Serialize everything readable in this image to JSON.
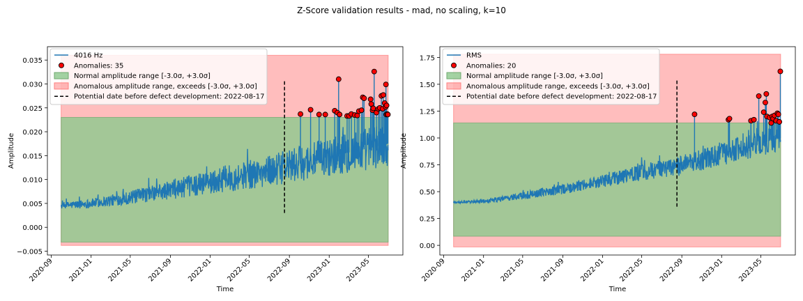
{
  "suptitle": "Z-Score validation results - mad, no scaling, k=10",
  "chart_data": [
    {
      "type": "line",
      "xlabel": "Time",
      "ylabel": "Amplitude",
      "xlim": [
        "2020-08-20",
        "2023-08-15"
      ],
      "ylim": [
        -0.0058,
        0.0378
      ],
      "yticks": [
        -0.005,
        0.0,
        0.005,
        0.01,
        0.015,
        0.02,
        0.025,
        0.03,
        0.035
      ],
      "ytick_labels": [
        "−0.005",
        "0.000",
        "0.005",
        "0.010",
        "0.015",
        "0.020",
        "0.025",
        "0.030",
        "0.035"
      ],
      "xticks": [
        "2020-09-01",
        "2021-01-01",
        "2021-05-01",
        "2021-09-01",
        "2022-01-01",
        "2022-05-01",
        "2022-09-01",
        "2023-01-01",
        "2023-05-01"
      ],
      "xtick_labels": [
        "2020-09",
        "2021-01",
        "2021-05",
        "2021-09",
        "2022-01",
        "2022-05",
        "2022-09",
        "2023-01",
        "2023-05"
      ],
      "bands": {
        "x_start": "2020-10-01",
        "x_end": "2023-07-01",
        "outer": [
          -0.0038,
          0.036
        ],
        "normal": [
          -0.0031,
          0.023
        ]
      },
      "defect_line": {
        "x": "2022-08-17",
        "y": [
          0.003,
          0.031
        ]
      },
      "series": [
        {
          "name": "4016 Hz",
          "color": "#1f77b4",
          "trend": [
            [
              "2020-10-01",
              0.0045
            ],
            [
              "2021-01-01",
              0.005
            ],
            [
              "2021-05-01",
              0.0062
            ],
            [
              "2021-09-01",
              0.0078
            ],
            [
              "2022-01-01",
              0.0095
            ],
            [
              "2022-05-01",
              0.011
            ],
            [
              "2022-08-17",
              0.0125
            ],
            [
              "2023-01-01",
              0.0148
            ],
            [
              "2023-05-01",
              0.0165
            ],
            [
              "2023-07-01",
              0.0175
            ]
          ],
          "noise": [
            [
              "2020-10-01",
              0.0006
            ],
            [
              "2021-05-01",
              0.0012
            ],
            [
              "2022-01-01",
              0.0022
            ],
            [
              "2022-08-17",
              0.003
            ],
            [
              "2023-07-01",
              0.0042
            ]
          ]
        }
      ],
      "anomalies": {
        "name": "Anomalies: 35",
        "points": [
          [
            "2022-10-05",
            0.0237
          ],
          [
            "2022-11-05",
            0.0246
          ],
          [
            "2022-12-01",
            0.0236
          ],
          [
            "2022-12-20",
            0.0236
          ],
          [
            "2023-01-18",
            0.0244
          ],
          [
            "2023-01-26",
            0.024
          ],
          [
            "2023-01-30",
            0.031
          ],
          [
            "2023-02-02",
            0.0236
          ],
          [
            "2023-02-25",
            0.0233
          ],
          [
            "2023-03-03",
            0.0233
          ],
          [
            "2023-03-10",
            0.0237
          ],
          [
            "2023-03-20",
            0.0235
          ],
          [
            "2023-03-28",
            0.0234
          ],
          [
            "2023-04-02",
            0.0243
          ],
          [
            "2023-04-10",
            0.0245
          ],
          [
            "2023-04-14",
            0.0272
          ],
          [
            "2023-04-18",
            0.027
          ],
          [
            "2023-05-08",
            0.0268
          ],
          [
            "2023-05-10",
            0.0258
          ],
          [
            "2023-05-14",
            0.0245
          ],
          [
            "2023-05-16",
            0.0249
          ],
          [
            "2023-05-19",
            0.0326
          ],
          [
            "2023-05-26",
            0.024
          ],
          [
            "2023-06-01",
            0.0248
          ],
          [
            "2023-06-05",
            0.025
          ],
          [
            "2023-06-10",
            0.0275
          ],
          [
            "2023-06-14",
            0.0248
          ],
          [
            "2023-06-16",
            0.0277
          ],
          [
            "2023-06-20",
            0.026
          ],
          [
            "2023-06-23",
            0.0252
          ],
          [
            "2023-06-24",
            0.0299
          ],
          [
            "2023-06-25",
            0.0236
          ],
          [
            "2023-06-26",
            0.0255
          ],
          [
            "2023-06-28",
            0.0237
          ],
          [
            "2023-06-30",
            0.0236
          ]
        ]
      },
      "legend": {
        "placement": "upper left",
        "entries": [
          "4016 Hz",
          "Anomalies: 35",
          "Normal amplitude range [-3.0σ, +3.0σ]",
          "Anomalous amplitude range, exceeds [-3.0σ, +3.0σ]",
          "Potential date before defect development: 2022-08-17"
        ]
      }
    },
    {
      "type": "line",
      "xlabel": "Time",
      "ylabel": "Amplitude",
      "xlim": [
        "2020-08-20",
        "2023-08-15"
      ],
      "ylim": [
        -0.09,
        1.85
      ],
      "yticks": [
        0.0,
        0.25,
        0.5,
        0.75,
        1.0,
        1.25,
        1.5,
        1.75
      ],
      "ytick_labels": [
        "0.00",
        "0.25",
        "0.50",
        "0.75",
        "1.00",
        "1.25",
        "1.50",
        "1.75"
      ],
      "xticks": [
        "2020-09-01",
        "2021-01-01",
        "2021-05-01",
        "2021-09-01",
        "2022-01-01",
        "2022-05-01",
        "2022-09-01",
        "2023-01-01",
        "2023-05-01"
      ],
      "xtick_labels": [
        "2020-09",
        "2021-01",
        "2021-05",
        "2021-09",
        "2022-01",
        "2022-05",
        "2022-09",
        "2023-01",
        "2023-05"
      ],
      "bands": {
        "x_start": "2020-10-01",
        "x_end": "2023-07-01",
        "outer": [
          -0.015,
          1.78
        ],
        "normal": [
          0.085,
          1.14
        ]
      },
      "defect_line": {
        "x": "2022-08-17",
        "y": [
          0.36,
          1.54
        ]
      },
      "series": [
        {
          "name": "RMS",
          "color": "#1f77b4",
          "trend": [
            [
              "2020-10-01",
              0.4
            ],
            [
              "2021-01-01",
              0.41
            ],
            [
              "2021-05-01",
              0.46
            ],
            [
              "2021-09-01",
              0.52
            ],
            [
              "2022-01-01",
              0.6
            ],
            [
              "2022-05-01",
              0.68
            ],
            [
              "2022-08-17",
              0.73
            ],
            [
              "2023-01-01",
              0.85
            ],
            [
              "2023-05-01",
              0.95
            ],
            [
              "2023-07-01",
              1.0
            ]
          ],
          "noise": [
            [
              "2020-10-01",
              0.005
            ],
            [
              "2021-01-01",
              0.015
            ],
            [
              "2021-05-01",
              0.03
            ],
            [
              "2022-01-01",
              0.05
            ],
            [
              "2022-08-17",
              0.08
            ],
            [
              "2023-07-01",
              0.11
            ]
          ]
        }
      ],
      "anomalies": {
        "name": "Anomalies: 20",
        "points": [
          [
            "2022-10-10",
            1.22
          ],
          [
            "2023-01-22",
            1.17
          ],
          [
            "2023-01-25",
            1.18
          ],
          [
            "2023-04-01",
            1.16
          ],
          [
            "2023-04-10",
            1.17
          ],
          [
            "2023-04-25",
            1.39
          ],
          [
            "2023-05-10",
            1.24
          ],
          [
            "2023-05-15",
            1.33
          ],
          [
            "2023-05-18",
            1.41
          ],
          [
            "2023-05-20",
            1.2
          ],
          [
            "2023-05-28",
            1.19
          ],
          [
            "2023-06-02",
            1.14
          ],
          [
            "2023-06-05",
            1.2
          ],
          [
            "2023-06-08",
            1.18
          ],
          [
            "2023-06-12",
            1.21
          ],
          [
            "2023-06-17",
            1.16
          ],
          [
            "2023-06-21",
            1.23
          ],
          [
            "2023-06-24",
            1.22
          ],
          [
            "2023-06-27",
            1.15
          ],
          [
            "2023-06-30",
            1.62
          ]
        ]
      },
      "legend": {
        "placement": "upper left",
        "entries": [
          "RMS",
          "Anomalies: 20",
          "Normal amplitude range [-3.0σ, +3.0σ]",
          "Anomalous amplitude range, exceeds [-3.0σ, +3.0σ]",
          "Potential date before defect development: 2022-08-17"
        ]
      }
    }
  ]
}
